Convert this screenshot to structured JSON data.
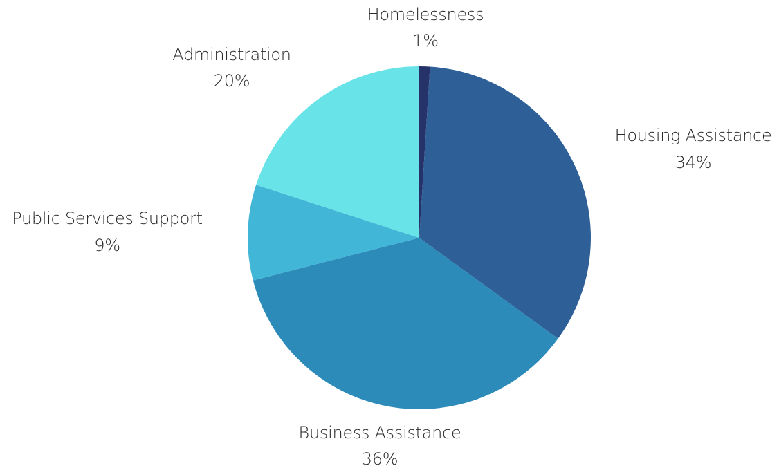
{
  "chart_data": {
    "type": "pie",
    "start_angle_deg": 0,
    "direction": "clockwise",
    "slices": [
      {
        "label": "Homelessness",
        "value": 1,
        "display": "1%",
        "color": "#26336b"
      },
      {
        "label": "Housing Assistance",
        "value": 34,
        "display": "34%",
        "color": "#2e5f96"
      },
      {
        "label": "Business Assistance",
        "value": 36,
        "display": "36%",
        "color": "#2d8bba"
      },
      {
        "label": "Public Services Support",
        "value": 9,
        "display": "9%",
        "color": "#41b6d6"
      },
      {
        "label": "Administration",
        "value": 20,
        "display": "20%",
        "color": "#68e3e8"
      }
    ],
    "legend": "none",
    "labels_outside": true
  }
}
